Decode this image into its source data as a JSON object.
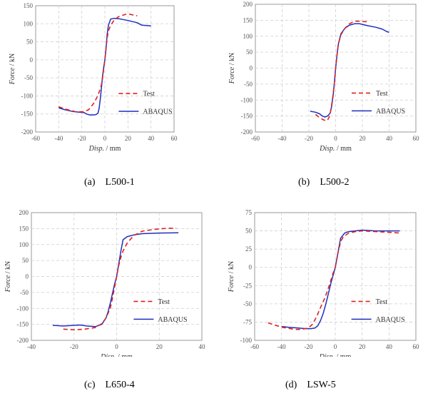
{
  "colors": {
    "test": "#e0201b",
    "abaqus": "#1f2fbf",
    "grid": "#cfcfcf",
    "axis": "#7f7f7f"
  },
  "legend": {
    "test": "Test",
    "abaqus": "ABAQUS"
  },
  "xlabel": {
    "name": "Disp.",
    "unit": " / mm"
  },
  "ylabel": {
    "name": "Force",
    "unit": " / kN"
  },
  "chart_data": [
    {
      "type": "line",
      "caption": "(a)    L500-1",
      "xlim": [
        -60,
        60
      ],
      "ylim": [
        -200,
        150
      ],
      "xticks": [
        -60,
        -40,
        -20,
        0,
        20,
        40,
        60
      ],
      "yticks": [
        -200,
        -150,
        -100,
        -50,
        0,
        50,
        100,
        150
      ],
      "series": [
        {
          "name": "Test",
          "style": "dashed",
          "x": [
            -40,
            -35,
            -30,
            -25,
            -18,
            -14,
            -10,
            -7,
            -5,
            -3,
            -2,
            -1,
            0,
            1,
            2,
            3,
            5,
            8,
            12,
            18,
            22,
            28
          ],
          "y": [
            -130,
            -136,
            -140,
            -144,
            -144,
            -138,
            -122,
            -105,
            -90,
            -70,
            -50,
            -25,
            0,
            30,
            60,
            80,
            95,
            110,
            120,
            126,
            126,
            122
          ]
        },
        {
          "name": "ABAQUS",
          "style": "solid",
          "x": [
            -40,
            -35,
            -28,
            -22,
            -18,
            -16,
            -14,
            -12,
            -8,
            -6,
            -5,
            -4,
            -3,
            -2,
            -1,
            0,
            1,
            2,
            3,
            5,
            8,
            12,
            20,
            28,
            32,
            40
          ],
          "y": [
            -133,
            -138,
            -143,
            -145,
            -146,
            -150,
            -152,
            -153,
            -152,
            -148,
            -135,
            -110,
            -80,
            -45,
            -20,
            0,
            30,
            70,
            95,
            113,
            115,
            114,
            109,
            103,
            96,
            94
          ]
        }
      ]
    },
    {
      "type": "line",
      "caption": "(b)    L500-2",
      "xlim": [
        -60,
        60
      ],
      "ylim": [
        -200,
        200
      ],
      "xticks": [
        -60,
        -40,
        -20,
        0,
        20,
        40,
        60
      ],
      "yticks": [
        -200,
        -150,
        -100,
        -50,
        0,
        50,
        100,
        150,
        200
      ],
      "series": [
        {
          "name": "Test",
          "style": "dashed",
          "x": [
            -15,
            -12,
            -9,
            -7,
            -6,
            -5,
            -4,
            -3,
            -2,
            -1,
            0,
            1,
            2,
            4,
            7,
            10,
            14,
            18,
            24
          ],
          "y": [
            -145,
            -155,
            -162,
            -165,
            -162,
            -155,
            -140,
            -115,
            -85,
            -50,
            0,
            40,
            75,
            105,
            125,
            138,
            147,
            147,
            145
          ]
        },
        {
          "name": "ABAQUS",
          "style": "solid",
          "x": [
            -19,
            -15,
            -12,
            -10,
            -8,
            -6,
            -4,
            -3,
            -2,
            -1,
            0,
            1,
            2,
            4,
            7,
            10,
            14,
            18,
            24,
            30,
            35,
            38,
            40
          ],
          "y": [
            -135,
            -138,
            -143,
            -150,
            -153,
            -150,
            -140,
            -120,
            -90,
            -50,
            0,
            40,
            75,
            108,
            125,
            134,
            139,
            139,
            133,
            128,
            122,
            115,
            112
          ]
        }
      ]
    },
    {
      "type": "line",
      "caption": "(c)    L650-4",
      "xlim": [
        -40,
        40
      ],
      "ylim": [
        -200,
        200
      ],
      "xticks": [
        -40,
        -20,
        0,
        20,
        40
      ],
      "yticks": [
        -200,
        -150,
        -100,
        -50,
        0,
        50,
        100,
        150,
        200
      ],
      "series": [
        {
          "name": "Test",
          "style": "dashed",
          "x": [
            -25,
            -20,
            -15,
            -10,
            -7,
            -5,
            -3,
            -2,
            -1,
            0,
            1,
            2,
            3,
            5,
            8,
            12,
            18,
            24,
            28
          ],
          "y": [
            -165,
            -167,
            -165,
            -160,
            -148,
            -130,
            -100,
            -70,
            -35,
            0,
            35,
            60,
            80,
            105,
            128,
            142,
            148,
            151,
            151
          ]
        },
        {
          "name": "ABAQUS",
          "style": "solid",
          "x": [
            -30,
            -25,
            -20,
            -17,
            -14,
            -10,
            -7,
            -5,
            -4,
            -3,
            -2,
            -1,
            0,
            1,
            2,
            3,
            5,
            8,
            12,
            20,
            29
          ],
          "y": [
            -153,
            -155,
            -153,
            -152,
            -155,
            -157,
            -150,
            -130,
            -110,
            -85,
            -55,
            -25,
            0,
            40,
            80,
            115,
            125,
            130,
            134,
            136,
            137
          ]
        }
      ]
    },
    {
      "type": "line",
      "caption": "(d)    LSW-5",
      "xlim": [
        -60,
        60
      ],
      "ylim": [
        -100,
        75
      ],
      "xticks": [
        -60,
        -40,
        -20,
        0,
        20,
        40,
        60
      ],
      "yticks": [
        -100,
        -75,
        -50,
        -25,
        0,
        25,
        50,
        75
      ],
      "series": [
        {
          "name": "Test",
          "style": "dashed",
          "x": [
            -50,
            -40,
            -30,
            -25,
            -20,
            -17,
            -14,
            -11,
            -8,
            -6,
            -4,
            -2,
            0,
            2,
            4,
            6,
            10,
            15,
            20,
            30,
            40,
            48
          ],
          "y": [
            -76,
            -82,
            -85,
            -85,
            -83,
            -78,
            -68,
            -55,
            -43,
            -33,
            -22,
            -10,
            0,
            20,
            35,
            42,
            47,
            49,
            50,
            49,
            48,
            47
          ]
        },
        {
          "name": "ABAQUS",
          "style": "solid",
          "x": [
            -40,
            -35,
            -28,
            -22,
            -18,
            -15,
            -13,
            -11,
            -9,
            -7,
            -5,
            -3,
            -1,
            0,
            2,
            4,
            7,
            10,
            15,
            20,
            30,
            40,
            48
          ],
          "y": [
            -81,
            -82,
            -83,
            -84,
            -84,
            -83,
            -80,
            -73,
            -63,
            -50,
            -35,
            -20,
            -7,
            0,
            20,
            40,
            47,
            49,
            50,
            51,
            50,
            50,
            50
          ]
        }
      ]
    }
  ]
}
